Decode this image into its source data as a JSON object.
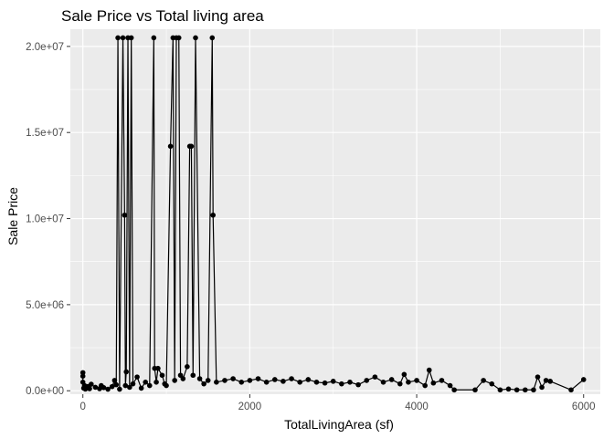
{
  "chart_data": {
    "type": "line",
    "title": "Sale Price vs Total living area",
    "xlabel": "TotalLivingArea (sf)",
    "ylabel": "Sale Price",
    "xlim": [
      -150,
      6200
    ],
    "ylim": [
      -200000,
      21000000
    ],
    "x_ticks": [
      0,
      2000,
      4000,
      6000
    ],
    "x_tick_labels": [
      "0",
      "2000",
      "4000",
      "6000"
    ],
    "y_ticks": [
      0,
      5000000,
      10000000,
      15000000,
      20000000
    ],
    "y_tick_labels": [
      "0.0e+00",
      "5.0e+06",
      "1.0e+07",
      "1.5e+07",
      "2.0e+07"
    ],
    "grid": true,
    "series": [
      {
        "points": [
          [
            0,
            1050000
          ],
          [
            0,
            850000
          ],
          [
            0,
            500000
          ],
          [
            10,
            150000
          ],
          [
            20,
            300000
          ],
          [
            30,
            100000
          ],
          [
            60,
            250000
          ],
          [
            80,
            120000
          ],
          [
            100,
            380000
          ],
          [
            150,
            200000
          ],
          [
            200,
            120000
          ],
          [
            220,
            300000
          ],
          [
            250,
            180000
          ],
          [
            300,
            90000
          ],
          [
            350,
            240000
          ],
          [
            380,
            600000
          ],
          [
            400,
            350000
          ],
          [
            420,
            20500000
          ],
          [
            440,
            90000
          ],
          [
            480,
            20500000
          ],
          [
            500,
            10200000
          ],
          [
            510,
            300000
          ],
          [
            520,
            1100000
          ],
          [
            540,
            20500000
          ],
          [
            560,
            200000
          ],
          [
            580,
            20500000
          ],
          [
            600,
            400000
          ],
          [
            650,
            800000
          ],
          [
            700,
            150000
          ],
          [
            750,
            500000
          ],
          [
            800,
            300000
          ],
          [
            850,
            20500000
          ],
          [
            860,
            1300000
          ],
          [
            880,
            500000
          ],
          [
            900,
            1300000
          ],
          [
            950,
            900000
          ],
          [
            980,
            400000
          ],
          [
            1000,
            300000
          ],
          [
            1050,
            14200000
          ],
          [
            1080,
            20500000
          ],
          [
            1100,
            600000
          ],
          [
            1120,
            20500000
          ],
          [
            1150,
            20500000
          ],
          [
            1170,
            900000
          ],
          [
            1200,
            700000
          ],
          [
            1250,
            1400000
          ],
          [
            1280,
            14200000
          ],
          [
            1300,
            14200000
          ],
          [
            1320,
            900000
          ],
          [
            1350,
            20500000
          ],
          [
            1400,
            700000
          ],
          [
            1450,
            400000
          ],
          [
            1500,
            600000
          ],
          [
            1550,
            20500000
          ],
          [
            1560,
            10200000
          ],
          [
            1600,
            500000
          ],
          [
            1700,
            600000
          ],
          [
            1800,
            700000
          ],
          [
            1900,
            500000
          ],
          [
            2000,
            600000
          ],
          [
            2100,
            700000
          ],
          [
            2200,
            500000
          ],
          [
            2300,
            650000
          ],
          [
            2400,
            550000
          ],
          [
            2500,
            700000
          ],
          [
            2600,
            500000
          ],
          [
            2700,
            650000
          ],
          [
            2800,
            500000
          ],
          [
            2900,
            450000
          ],
          [
            3000,
            550000
          ],
          [
            3100,
            400000
          ],
          [
            3200,
            500000
          ],
          [
            3300,
            350000
          ],
          [
            3400,
            600000
          ],
          [
            3500,
            800000
          ],
          [
            3600,
            500000
          ],
          [
            3700,
            650000
          ],
          [
            3800,
            400000
          ],
          [
            3850,
            950000
          ],
          [
            3900,
            500000
          ],
          [
            4000,
            600000
          ],
          [
            4100,
            300000
          ],
          [
            4150,
            1200000
          ],
          [
            4200,
            450000
          ],
          [
            4300,
            600000
          ],
          [
            4400,
            300000
          ],
          [
            4450,
            50000
          ],
          [
            4700,
            50000
          ],
          [
            4800,
            600000
          ],
          [
            4900,
            400000
          ],
          [
            5000,
            50000
          ],
          [
            5100,
            100000
          ],
          [
            5200,
            50000
          ],
          [
            5300,
            50000
          ],
          [
            5400,
            50000
          ],
          [
            5450,
            800000
          ],
          [
            5500,
            200000
          ],
          [
            5550,
            600000
          ],
          [
            5600,
            550000
          ],
          [
            5850,
            50000
          ],
          [
            6000,
            650000
          ]
        ]
      }
    ]
  }
}
